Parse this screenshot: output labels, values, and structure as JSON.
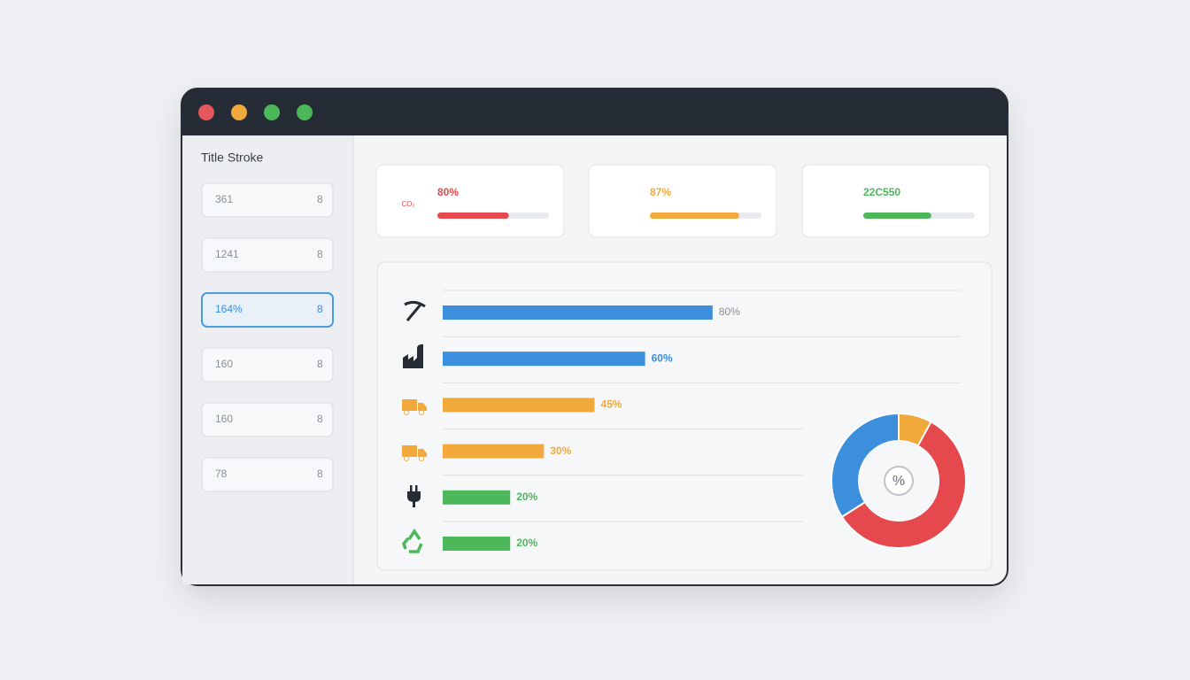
{
  "sidebar": {
    "title": "Title Stroke",
    "selected": 2,
    "items": [
      {
        "label": "361",
        "badge": "8"
      },
      {
        "label": "1241",
        "badge": "8"
      },
      {
        "label": "164%",
        "badge": "8"
      },
      {
        "label": "160",
        "badge": "8"
      },
      {
        "label": "160",
        "badge": "8"
      },
      {
        "label": "78",
        "badge": "8"
      }
    ]
  },
  "kpis": [
    {
      "label": "80%",
      "icon_text": "CO₂",
      "progress": 64,
      "color": "#e5484d"
    },
    {
      "label": "87%",
      "progress": 80,
      "color": "#f2a93b"
    },
    {
      "label": "22C550",
      "progress": 61,
      "color": "#4cb85a"
    }
  ],
  "chart_data": [
    {
      "type": "bar",
      "orientation": "horizontal",
      "values": [
        80,
        60,
        45,
        30,
        20,
        20
      ],
      "value_labels": [
        "80%",
        "60%",
        "45%",
        "30%",
        "20%",
        "20%"
      ],
      "colors": [
        "#3b8fdd",
        "#3b8fdd",
        "#f2a93b",
        "#f2a93b",
        "#4cb85a",
        "#4cb85a"
      ],
      "label_colors": [
        "#8a9099",
        "#3b8fdd",
        "#f2a93b",
        "#f2a93b",
        "#4cb85a",
        "#4cb85a"
      ],
      "xlim": [
        0,
        100
      ]
    },
    {
      "type": "pie",
      "donut": true,
      "values": [
        8,
        58,
        34
      ],
      "colors": [
        "#f2a93b",
        "#e5484d",
        "#3b8fdd"
      ],
      "center_label": "%"
    }
  ]
}
